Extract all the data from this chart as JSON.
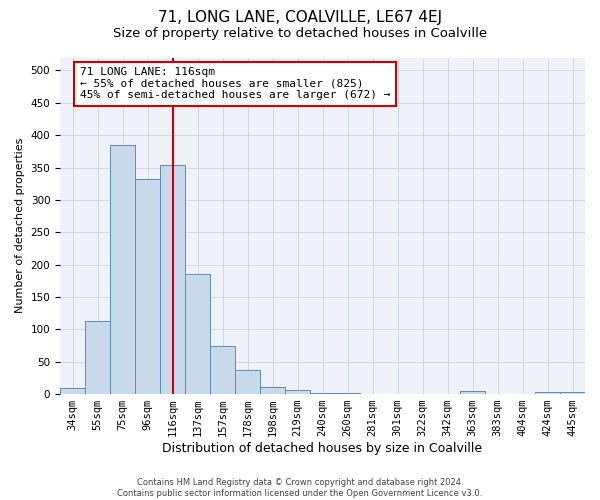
{
  "title": "71, LONG LANE, COALVILLE, LE67 4EJ",
  "subtitle": "Size of property relative to detached houses in Coalville",
  "xlabel": "Distribution of detached houses by size in Coalville",
  "ylabel": "Number of detached properties",
  "categories": [
    "34sqm",
    "55sqm",
    "75sqm",
    "96sqm",
    "116sqm",
    "137sqm",
    "157sqm",
    "178sqm",
    "198sqm",
    "219sqm",
    "240sqm",
    "260sqm",
    "281sqm",
    "301sqm",
    "322sqm",
    "342sqm",
    "363sqm",
    "383sqm",
    "404sqm",
    "424sqm",
    "445sqm"
  ],
  "values": [
    10,
    113,
    385,
    332,
    354,
    186,
    75,
    37,
    11,
    7,
    2,
    1,
    0,
    0,
    0,
    0,
    5,
    0,
    0,
    3,
    3
  ],
  "bar_color": "#c9d9ec",
  "bar_edge_color": "#5b8db8",
  "vline_x_index": 4,
  "vline_color": "#cc0000",
  "annotation_text": "71 LONG LANE: 116sqm\n← 55% of detached houses are smaller (825)\n45% of semi-detached houses are larger (672) →",
  "annotation_box_color": "#ffffff",
  "annotation_box_edge": "#cc0000",
  "ylim": [
    0,
    520
  ],
  "yticks": [
    0,
    50,
    100,
    150,
    200,
    250,
    300,
    350,
    400,
    450,
    500
  ],
  "grid_color": "#c8d0e0",
  "background_color": "#eef2f8",
  "footer_line1": "Contains HM Land Registry data © Crown copyright and database right 2024.",
  "footer_line2": "Contains public sector information licensed under the Open Government Licence v3.0.",
  "title_fontsize": 11,
  "subtitle_fontsize": 9.5,
  "tick_fontsize": 7.5,
  "ylabel_fontsize": 8,
  "xlabel_fontsize": 9,
  "annotation_fontsize": 8,
  "footer_fontsize": 6
}
